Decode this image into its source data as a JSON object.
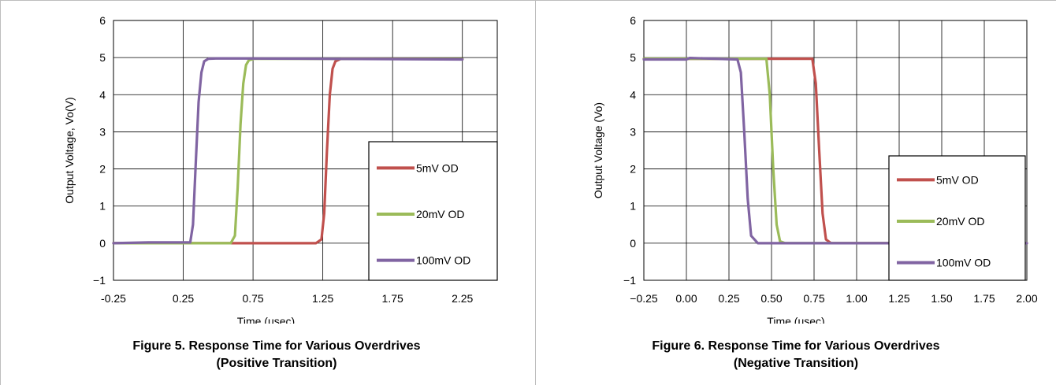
{
  "figures": [
    {
      "caption_line1": "Figure 5. Response Time for Various Overdrives",
      "caption_line2": "(Positive Transition)"
    },
    {
      "caption_line1": "Figure 6. Response Time for Various Overdrives",
      "caption_line2": "(Negative Transition)"
    }
  ],
  "colors": {
    "series_5mV": "#c0504d",
    "series_20mV": "#9bbb59",
    "series_100mV": "#8064a2",
    "grid": "#000000"
  },
  "chart_data": [
    {
      "type": "line",
      "title": "",
      "xlabel": "Time (usec)",
      "ylabel": "Output Voltage, Vo(V)",
      "xlim": [
        -0.25,
        2.5
      ],
      "ylim": [
        -1,
        6
      ],
      "xticks": [
        -0.25,
        0.25,
        0.75,
        1.25,
        1.75,
        2.25
      ],
      "xtick_labels": [
        "-0.25",
        "0.25",
        "0.75",
        "1.25",
        "1.75",
        "2.25"
      ],
      "yticks": [
        -1,
        0,
        1,
        2,
        3,
        4,
        5,
        6
      ],
      "ytick_labels": [
        "−1",
        "0",
        "1",
        "2",
        "3",
        "4",
        "5",
        "6"
      ],
      "grid": true,
      "legend_position": "right",
      "series": [
        {
          "name": "5mV OD",
          "color": "#c0504d",
          "x": [
            -0.25,
            1.2,
            1.24,
            1.26,
            1.28,
            1.3,
            1.32,
            1.34,
            1.38,
            2.25
          ],
          "y": [
            0.0,
            0.0,
            0.1,
            0.8,
            2.5,
            4.0,
            4.7,
            4.9,
            4.97,
            4.96
          ]
        },
        {
          "name": "20mV OD",
          "color": "#9bbb59",
          "x": [
            -0.25,
            0.59,
            0.62,
            0.64,
            0.66,
            0.68,
            0.7,
            0.72,
            0.76,
            2.25
          ],
          "y": [
            0.0,
            0.0,
            0.2,
            1.5,
            3.2,
            4.3,
            4.8,
            4.93,
            4.97,
            4.96
          ]
        },
        {
          "name": "100mV OD",
          "color": "#8064a2",
          "x": [
            -0.25,
            0.0,
            0.1,
            0.3,
            0.32,
            0.34,
            0.36,
            0.38,
            0.4,
            0.43,
            0.5,
            2.25
          ],
          "y": [
            0.0,
            0.02,
            0.02,
            0.02,
            0.5,
            2.2,
            3.8,
            4.6,
            4.9,
            4.97,
            4.98,
            4.95
          ]
        }
      ]
    },
    {
      "type": "line",
      "title": "",
      "xlabel": "Time (usec)",
      "ylabel": "Output Voltage (Vo)",
      "xlim": [
        -0.25,
        2.0
      ],
      "ylim": [
        -1,
        6
      ],
      "xticks": [
        -0.25,
        0.0,
        0.25,
        0.5,
        0.75,
        1.0,
        1.25,
        1.5,
        1.75,
        2.0
      ],
      "xtick_labels": [
        "−0.25",
        "0.00",
        "0.25",
        "0.50",
        "0.75",
        "1.00",
        "1.25",
        "1.50",
        "1.75",
        "2.00"
      ],
      "yticks": [
        -1,
        0,
        1,
        2,
        3,
        4,
        5,
        6
      ],
      "ytick_labels": [
        "−1",
        "0",
        "1",
        "2",
        "3",
        "4",
        "5",
        "6"
      ],
      "grid": true,
      "legend_position": "right",
      "series": [
        {
          "name": "5mV OD",
          "color": "#c0504d",
          "x": [
            -0.25,
            0.74,
            0.76,
            0.78,
            0.8,
            0.82,
            0.85,
            2.0
          ],
          "y": [
            4.97,
            4.97,
            4.3,
            2.5,
            0.8,
            0.1,
            0.0,
            0.0
          ]
        },
        {
          "name": "20mV OD",
          "color": "#9bbb59",
          "x": [
            -0.25,
            0.47,
            0.49,
            0.51,
            0.53,
            0.55,
            0.58,
            2.0
          ],
          "y": [
            4.97,
            4.97,
            4.0,
            2.0,
            0.5,
            0.05,
            0.0,
            0.0
          ]
        },
        {
          "name": "100mV OD",
          "color": "#8064a2",
          "x": [
            -0.25,
            0.0,
            0.02,
            0.3,
            0.32,
            0.34,
            0.36,
            0.38,
            0.42,
            2.0
          ],
          "y": [
            4.95,
            4.95,
            4.99,
            4.95,
            4.6,
            3.0,
            1.2,
            0.2,
            0.0,
            0.0
          ]
        }
      ]
    }
  ]
}
